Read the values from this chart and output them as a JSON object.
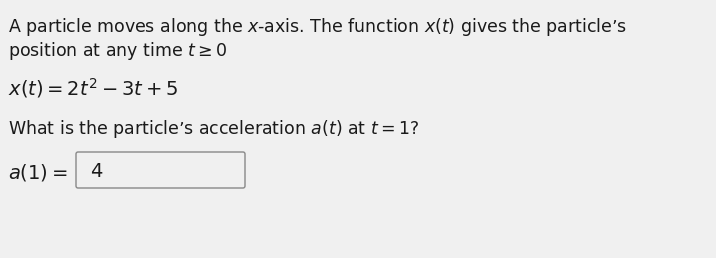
{
  "background_color": "#f0f0f0",
  "text_color": "#1a1a1a",
  "line1": "A particle moves along the $x$-axis. The function $x(t)$ gives the particle’s",
  "line2": "position at any time $t \\geq 0$",
  "formula": "$x(t) = 2t^2 - 3t + 5$",
  "question": "What is the particle’s acceleration $a(t)$ at $t = 1$?",
  "answer_label": "$a(1) =$",
  "answer_value": "4",
  "box_color": "#f0f0f0",
  "box_border_color": "#888888",
  "font_size_body": 12.5,
  "font_size_formula": 14,
  "font_size_answer": 14
}
